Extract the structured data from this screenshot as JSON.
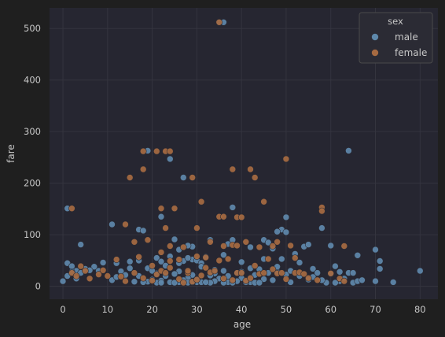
{
  "chart_data": {
    "type": "scatter",
    "xlabel": "age",
    "ylabel": "fare",
    "xlim": [
      -3,
      84
    ],
    "ylim": [
      -25,
      540
    ],
    "xticks": [
      "0",
      "10",
      "20",
      "30",
      "40",
      "50",
      "60",
      "70",
      "80"
    ],
    "yticks": [
      "0",
      "100",
      "200",
      "300",
      "400",
      "500"
    ],
    "grid": true,
    "legend": {
      "title": "sex",
      "placement": "top-right"
    },
    "colors": {
      "figure_bg": "#1f1f1f",
      "axes_bg": "#262631",
      "grid": "#34343f",
      "text": "#c7c7c7",
      "male": "#5e88ab",
      "female": "#a66a41",
      "legend_bg": "#2b2b34",
      "legend_border": "#4a4a4a"
    },
    "series": [
      {
        "name": "male",
        "points": [
          [
            35,
            512
          ],
          [
            36,
            512
          ],
          [
            19,
            263
          ],
          [
            64,
            263
          ],
          [
            24,
            247
          ],
          [
            27,
            211
          ],
          [
            38,
            153
          ],
          [
            1,
            151
          ],
          [
            22,
            135
          ],
          [
            50,
            134
          ],
          [
            11,
            120
          ],
          [
            17,
            110
          ],
          [
            49,
            110
          ],
          [
            48,
            106
          ],
          [
            50,
            105
          ],
          [
            18,
            108
          ],
          [
            42,
            76
          ],
          [
            58,
            113
          ],
          [
            45,
            90
          ],
          [
            46,
            85
          ],
          [
            4,
            81
          ],
          [
            37,
            82
          ],
          [
            29,
            77
          ],
          [
            25,
            91
          ],
          [
            33,
            90
          ],
          [
            38,
            90
          ],
          [
            54,
            77
          ],
          [
            55,
            81
          ],
          [
            28,
            79
          ],
          [
            60,
            79
          ],
          [
            47,
            73
          ],
          [
            26,
            71
          ],
          [
            70,
            71
          ],
          [
            66,
            60
          ],
          [
            52,
            63
          ],
          [
            36,
            61
          ],
          [
            24,
            58
          ],
          [
            32,
            57
          ],
          [
            21,
            55
          ],
          [
            45,
            53
          ],
          [
            29,
            52
          ],
          [
            49,
            53
          ],
          [
            71,
            49
          ],
          [
            15,
            48
          ],
          [
            27,
            49
          ],
          [
            30,
            50
          ],
          [
            22,
            48
          ],
          [
            9,
            46
          ],
          [
            12,
            45
          ],
          [
            1,
            45
          ],
          [
            40,
            47
          ],
          [
            53,
            46
          ],
          [
            31,
            45
          ],
          [
            61,
            39
          ],
          [
            71,
            34
          ],
          [
            7,
            38
          ],
          [
            2,
            39
          ],
          [
            19,
            35
          ],
          [
            44,
            33
          ],
          [
            56,
            34
          ],
          [
            3,
            30
          ],
          [
            36,
            30
          ],
          [
            80,
            30
          ],
          [
            13,
            29
          ],
          [
            26,
            29
          ],
          [
            48,
            28
          ],
          [
            62,
            28
          ],
          [
            64,
            26
          ],
          [
            4,
            26
          ],
          [
            65,
            26
          ],
          [
            57,
            26
          ],
          [
            21,
            25
          ],
          [
            39,
            26
          ],
          [
            34,
            25
          ],
          [
            25,
            24
          ],
          [
            50,
            23
          ],
          [
            43,
            22
          ],
          [
            29,
            22
          ],
          [
            33,
            21
          ],
          [
            17,
            20
          ],
          [
            23,
            20
          ],
          [
            28,
            16
          ],
          [
            40,
            16
          ],
          [
            35,
            15
          ],
          [
            45,
            14
          ],
          [
            55,
            13
          ],
          [
            30,
            13
          ],
          [
            20,
            13
          ],
          [
            27,
            12
          ],
          [
            47,
            12
          ],
          [
            22,
            11
          ],
          [
            34,
            10
          ],
          [
            39,
            10
          ],
          [
            62,
            10
          ],
          [
            19,
            9
          ],
          [
            70,
            10
          ],
          [
            26,
            8
          ],
          [
            30,
            8
          ],
          [
            24,
            8
          ],
          [
            31,
            8
          ],
          [
            42,
            8
          ],
          [
            18,
            8
          ],
          [
            37,
            8
          ],
          [
            16,
            9
          ],
          [
            41,
            8
          ],
          [
            51,
            8
          ],
          [
            59,
            7
          ],
          [
            65,
            7
          ],
          [
            28,
            7
          ],
          [
            21,
            7
          ],
          [
            74,
            8
          ],
          [
            61,
            7
          ],
          [
            66,
            10
          ],
          [
            36,
            7
          ],
          [
            43,
            7
          ],
          [
            25,
            7
          ],
          [
            38,
            7
          ],
          [
            22,
            7
          ],
          [
            33,
            7
          ],
          [
            44,
            7
          ],
          [
            32,
            8
          ],
          [
            29,
            8
          ],
          [
            0,
            10
          ],
          [
            1,
            20
          ],
          [
            3,
            15
          ],
          [
            2,
            28
          ],
          [
            5,
            34
          ],
          [
            6,
            31
          ],
          [
            8,
            30
          ],
          [
            14,
            22
          ],
          [
            11,
            12
          ],
          [
            12,
            18
          ],
          [
            15,
            35
          ],
          [
            17,
            50
          ],
          [
            20,
            30
          ],
          [
            23,
            40
          ],
          [
            26,
            45
          ],
          [
            28,
            55
          ],
          [
            31,
            38
          ],
          [
            34,
            32
          ],
          [
            37,
            20
          ],
          [
            40,
            28
          ],
          [
            42,
            35
          ],
          [
            46,
            26
          ],
          [
            48,
            38
          ],
          [
            51,
            30
          ],
          [
            53,
            20
          ],
          [
            56,
            18
          ],
          [
            58,
            12
          ],
          [
            60,
            24
          ],
          [
            63,
            15
          ],
          [
            67,
            12
          ]
        ]
      },
      {
        "name": "female",
        "points": [
          [
            35,
            512
          ],
          [
            18,
            262
          ],
          [
            21,
            262
          ],
          [
            23,
            262
          ],
          [
            24,
            262
          ],
          [
            50,
            247
          ],
          [
            18,
            227
          ],
          [
            38,
            227
          ],
          [
            42,
            227
          ],
          [
            15,
            211
          ],
          [
            29,
            211
          ],
          [
            43,
            211
          ],
          [
            31,
            164
          ],
          [
            45,
            164
          ],
          [
            58,
            153
          ],
          [
            2,
            151
          ],
          [
            22,
            151
          ],
          [
            25,
            151
          ],
          [
            58,
            146
          ],
          [
            35,
            135
          ],
          [
            36,
            135
          ],
          [
            39,
            134
          ],
          [
            40,
            134
          ],
          [
            30,
            113
          ],
          [
            23,
            113
          ],
          [
            14,
            120
          ],
          [
            16,
            86
          ],
          [
            33,
            86
          ],
          [
            41,
            86
          ],
          [
            48,
            86
          ],
          [
            19,
            90
          ],
          [
            38,
            80
          ],
          [
            39,
            79
          ],
          [
            36,
            78
          ],
          [
            24,
            78
          ],
          [
            47,
            78
          ],
          [
            51,
            79
          ],
          [
            63,
            78
          ],
          [
            27,
            76
          ],
          [
            44,
            76
          ],
          [
            22,
            66
          ],
          [
            17,
            57
          ],
          [
            32,
            56
          ],
          [
            52,
            55
          ],
          [
            30,
            58
          ],
          [
            37,
            53
          ],
          [
            46,
            53
          ],
          [
            12,
            52
          ],
          [
            24,
            49
          ],
          [
            5,
            30
          ],
          [
            9,
            31
          ],
          [
            4,
            39
          ],
          [
            2,
            26
          ],
          [
            3,
            20
          ],
          [
            8,
            23
          ],
          [
            13,
            19
          ],
          [
            14,
            10
          ],
          [
            16,
            26
          ],
          [
            18,
            16
          ],
          [
            20,
            11
          ],
          [
            21,
            23
          ],
          [
            22,
            30
          ],
          [
            23,
            26
          ],
          [
            26,
            14
          ],
          [
            27,
            7
          ],
          [
            28,
            26
          ],
          [
            29,
            9
          ],
          [
            30,
            13
          ],
          [
            31,
            21
          ],
          [
            33,
            27
          ],
          [
            34,
            30
          ],
          [
            36,
            15
          ],
          [
            38,
            12
          ],
          [
            39,
            26
          ],
          [
            40,
            26
          ],
          [
            41,
            11
          ],
          [
            42,
            16
          ],
          [
            44,
            24
          ],
          [
            45,
            26
          ],
          [
            47,
            33
          ],
          [
            48,
            25
          ],
          [
            49,
            26
          ],
          [
            50,
            14
          ],
          [
            52,
            26
          ],
          [
            53,
            27
          ],
          [
            54,
            24
          ],
          [
            55,
            16
          ],
          [
            57,
            12
          ],
          [
            60,
            25
          ],
          [
            62,
            15
          ],
          [
            63,
            10
          ],
          [
            26,
            52
          ],
          [
            28,
            30
          ],
          [
            32,
            36
          ],
          [
            35,
            50
          ],
          [
            43,
            40
          ],
          [
            20,
            40
          ],
          [
            24,
            36
          ],
          [
            10,
            20
          ],
          [
            6,
            15
          ]
        ]
      }
    ]
  }
}
